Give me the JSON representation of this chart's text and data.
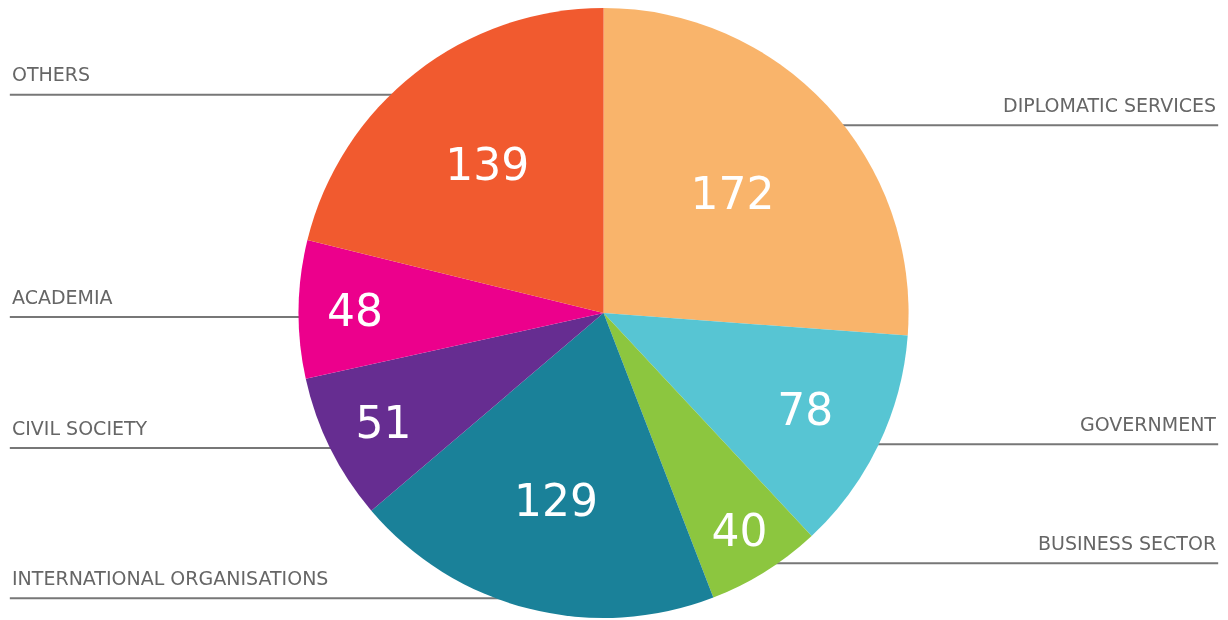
{
  "chart_data": {
    "type": "pie",
    "categories": [
      "DIPLOMATIC SERVICES",
      "GOVERNMENT",
      "BUSINESS SECTOR",
      "INTERNATIONAL ORGANISATIONS",
      "CIVIL SOCIETY",
      "ACADEMIA",
      "OTHERS"
    ],
    "values": [
      172,
      78,
      40,
      129,
      51,
      48,
      139
    ],
    "colors": [
      "#f9b46b",
      "#57c5d3",
      "#8cc63f",
      "#1a8199",
      "#662d91",
      "#ec008c",
      "#f15a2f"
    ],
    "data_labels": true
  }
}
